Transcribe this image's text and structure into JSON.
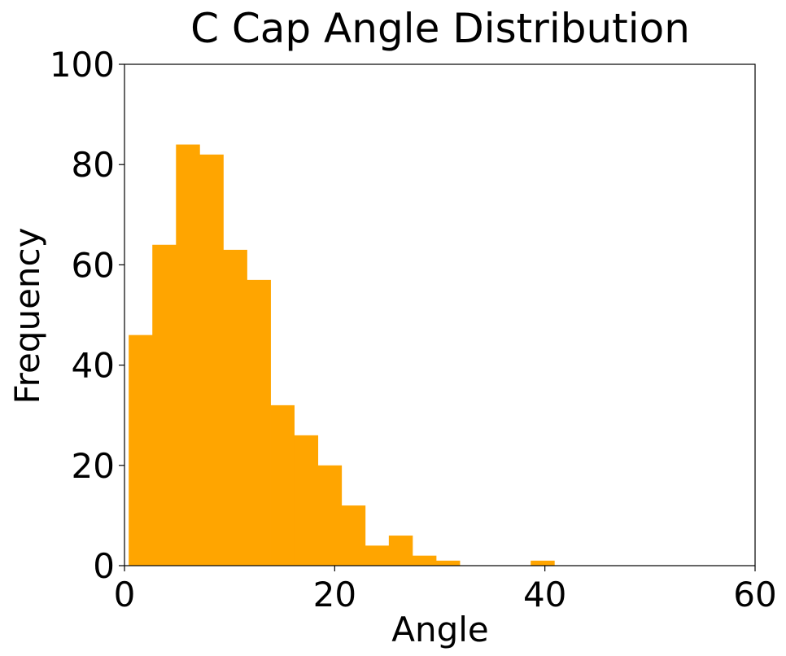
{
  "chart_data": {
    "type": "bar",
    "title": "C Cap Angle Distribution",
    "xlabel": "Angle",
    "ylabel": "Frequency",
    "xlim": [
      0,
      60
    ],
    "ylim": [
      0,
      100
    ],
    "xticks": [
      0,
      20,
      40,
      60
    ],
    "yticks": [
      0,
      20,
      40,
      60,
      80,
      100
    ],
    "grid": false,
    "bar_color": "#FFA500",
    "bins": [
      {
        "start": 0.4,
        "end": 2.65,
        "value": 46
      },
      {
        "start": 2.65,
        "end": 4.9,
        "value": 64
      },
      {
        "start": 4.9,
        "end": 7.15,
        "value": 84
      },
      {
        "start": 7.15,
        "end": 9.4,
        "value": 82
      },
      {
        "start": 9.4,
        "end": 11.65,
        "value": 63
      },
      {
        "start": 11.65,
        "end": 13.9,
        "value": 57
      },
      {
        "start": 13.9,
        "end": 16.15,
        "value": 32
      },
      {
        "start": 16.15,
        "end": 18.4,
        "value": 26
      },
      {
        "start": 18.4,
        "end": 20.65,
        "value": 20
      },
      {
        "start": 20.65,
        "end": 22.9,
        "value": 12
      },
      {
        "start": 22.9,
        "end": 25.15,
        "value": 4
      },
      {
        "start": 25.15,
        "end": 27.4,
        "value": 6
      },
      {
        "start": 27.4,
        "end": 29.65,
        "value": 2
      },
      {
        "start": 29.65,
        "end": 31.9,
        "value": 1
      },
      {
        "start": 38.65,
        "end": 40.9,
        "value": 1
      }
    ]
  }
}
